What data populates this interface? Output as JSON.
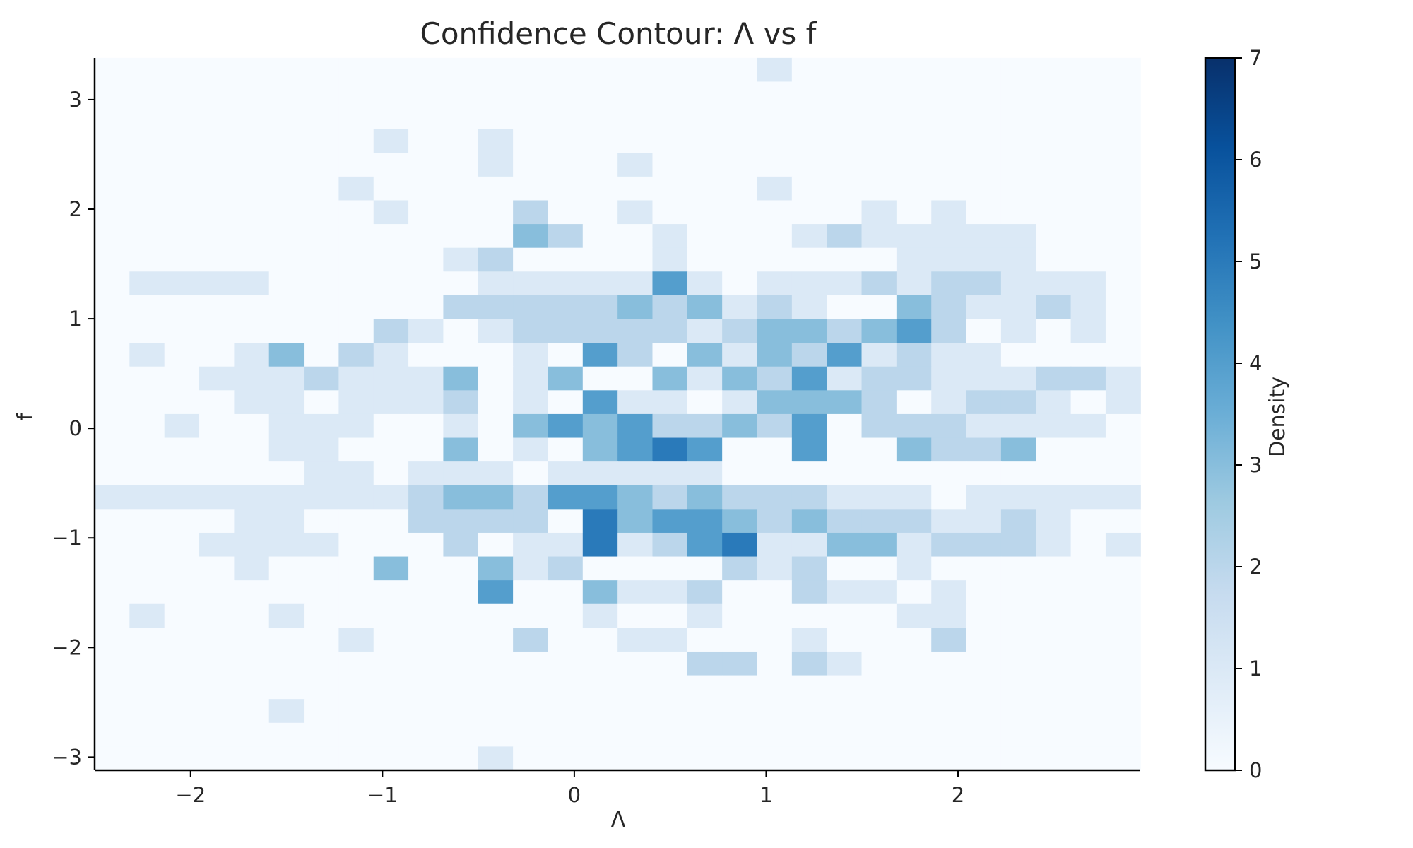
{
  "chart_data": {
    "type": "heatmap",
    "title": "Confidence Contour: Λ vs f",
    "xlabel": "Λ",
    "ylabel": "f",
    "colorbar_label": "Density",
    "colormap": "Blues",
    "colormap_stops": [
      "#f7fbff",
      "#deebf7",
      "#c6dbef",
      "#9ecae1",
      "#6baed6",
      "#4292c6",
      "#2171b5",
      "#08519c",
      "#08306b"
    ],
    "xlim": [
      -2.5,
      2.95
    ],
    "ylim": [
      -3.12,
      3.38
    ],
    "x_edges_start": -2.5,
    "x_bin_width": 0.1817,
    "x_bins": 30,
    "y_edges_start": -3.12,
    "y_bin_width": 0.2167,
    "y_bins": 30,
    "xticks": [
      -2,
      -1,
      0,
      1,
      2
    ],
    "xtick_labels": [
      "−2",
      "−1",
      "0",
      "1",
      "2"
    ],
    "yticks": [
      -3,
      -2,
      -1,
      0,
      1,
      2,
      3
    ],
    "ytick_labels": [
      "−3",
      "−2",
      "−1",
      "0",
      "1",
      "2",
      "3"
    ],
    "colorbar_range": [
      0,
      7
    ],
    "colorbar_ticks": [
      0,
      1,
      2,
      3,
      4,
      5,
      6,
      7
    ],
    "colorbar_tick_labels": [
      "0",
      "1",
      "2",
      "3",
      "4",
      "5",
      "6",
      "7"
    ],
    "counts_rows_top_to_bottom": [
      "000000000000000000010000000000",
      "000000000000000000000000000000",
      "000000000000000000000000000000",
      "000000001001000000000000000000",
      "000000000001000100000000000000",
      "000000010000000000010000000000",
      "000000001000200100000010100000",
      "000000000000320010001211111000",
      "000000000012000010000001111000",
      "011110000001111141011121221110",
      "000000000022222323121003211210",
      "000000002101222221233234201010",
      "010013021000104203132412110000",
      "000111211130130031324122111221",
      "000011011120104110133320122101",
      "001001110010343422324022211110",
      "000001100030103454004003223000",
      "000000110111011111000000000000",
      "111111111233244323222111011111",
      "000011000222205344323222112100",
      "000111100020115124511331222101",
      "000010003003120000212001000000",
      "000000000004003112002110100000",
      "010001000000001001000001100000",
      "000000010000200110001000200000",
      "000000000000000002202100000000",
      "000000000000000000000000000000",
      "000001000000000000000000000000",
      "000000000000000000000000000000",
      "000000000001000000000000000000"
    ]
  }
}
